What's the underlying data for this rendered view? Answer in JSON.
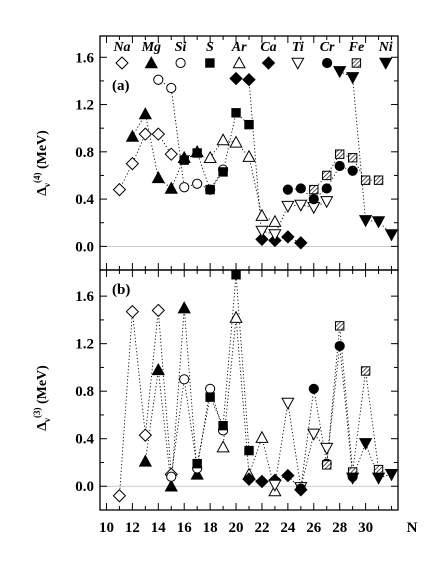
{
  "chart_data": {
    "type": "scatter",
    "x_ticks": [
      10,
      12,
      14,
      16,
      18,
      20,
      22,
      24,
      26,
      28,
      30
    ],
    "x_axis_letter": "N",
    "xlim": [
      9.5,
      32.5
    ],
    "legend": [
      {
        "name": "Na",
        "marker": "diamond-open"
      },
      {
        "name": "Mg",
        "marker": "triangle-filled"
      },
      {
        "name": "Si",
        "marker": "circle-open"
      },
      {
        "name": "S",
        "marker": "square-filled"
      },
      {
        "name": "Ar",
        "marker": "triangle-open"
      },
      {
        "name": "Ca",
        "marker": "diamond-filled"
      },
      {
        "name": "Ti",
        "marker": "triangle-down-open"
      },
      {
        "name": "Cr",
        "marker": "circle-filled"
      },
      {
        "name": "Fe",
        "marker": "square-hatched"
      },
      {
        "name": "Ni",
        "marker": "triangle-down-filled"
      }
    ],
    "panels": [
      {
        "tag": "(a)",
        "ylabel_main": "Δ",
        "ylabel_sub": "ν",
        "ylabel_sup": "(4)",
        "ylabel_unit": " (MeV)",
        "yticks": [
          "0.0",
          "0.4",
          "0.8",
          "1.2",
          "1.6"
        ],
        "ytick_values": [
          0.0,
          0.4,
          0.8,
          1.2,
          1.6
        ],
        "ylim": [
          -0.2,
          1.78
        ],
        "series": [
          {
            "name": "Na",
            "points": [
              [
                11,
                0.48
              ],
              [
                12,
                0.7
              ],
              [
                13,
                0.95
              ],
              [
                14,
                0.95
              ],
              [
                15,
                0.78
              ]
            ]
          },
          {
            "name": "Mg",
            "points": [
              [
                12,
                0.93
              ],
              [
                13,
                1.12
              ],
              [
                14,
                0.58
              ],
              [
                15,
                0.49
              ],
              [
                16,
                0.75
              ],
              [
                17,
                0.8
              ]
            ]
          },
          {
            "name": "Si",
            "points": [
              [
                14,
                1.41
              ],
              [
                15,
                1.34
              ],
              [
                16,
                0.5
              ],
              [
                17,
                0.53
              ],
              [
                18,
                0.48
              ],
              [
                19,
                0.65
              ]
            ]
          },
          {
            "name": "S",
            "points": [
              [
                16,
                0.73
              ],
              [
                17,
                0.79
              ],
              [
                18,
                0.48
              ],
              [
                19,
                0.63
              ],
              [
                20,
                1.13
              ],
              [
                21,
                1.03
              ]
            ]
          },
          {
            "name": "Ar",
            "points": [
              [
                18,
                0.75
              ],
              [
                19,
                0.9
              ],
              [
                20,
                0.88
              ],
              [
                21,
                0.76
              ],
              [
                22,
                0.26
              ],
              [
                23,
                0.21
              ]
            ]
          },
          {
            "name": "Ca",
            "points": [
              [
                20,
                1.42
              ],
              [
                21,
                1.41
              ],
              [
                22,
                0.06
              ],
              [
                23,
                0.05
              ],
              [
                24,
                0.08
              ],
              [
                25,
                0.03
              ]
            ]
          },
          {
            "name": "Ti",
            "points": [
              [
                22,
                0.13
              ],
              [
                23,
                0.1
              ],
              [
                24,
                0.34
              ],
              [
                25,
                0.35
              ],
              [
                26,
                0.33
              ],
              [
                27,
                0.38
              ]
            ]
          },
          {
            "name": "Cr",
            "points": [
              [
                24,
                0.48
              ],
              [
                25,
                0.49
              ],
              [
                26,
                0.4
              ],
              [
                27,
                0.49
              ],
              [
                28,
                0.68
              ],
              [
                29,
                0.64
              ]
            ]
          },
          {
            "name": "Fe",
            "points": [
              [
                26,
                0.48
              ],
              [
                27,
                0.6
              ],
              [
                28,
                0.78
              ],
              [
                29,
                0.75
              ],
              [
                30,
                0.56
              ],
              [
                31,
                0.56
              ]
            ]
          },
          {
            "name": "Ni",
            "points": [
              [
                28,
                1.48
              ],
              [
                29,
                1.43
              ],
              [
                30,
                0.22
              ],
              [
                31,
                0.21
              ],
              [
                32,
                0.1
              ]
            ]
          }
        ]
      },
      {
        "tag": "(b)",
        "ylabel_main": "Δ",
        "ylabel_sub": "ν",
        "ylabel_sup": "(3)",
        "ylabel_unit": " (MeV)",
        "yticks": [
          "0.0",
          "0.4",
          "0.8",
          "1.2",
          "1.6"
        ],
        "ytick_values": [
          0.0,
          0.4,
          0.8,
          1.2,
          1.6
        ],
        "ylim": [
          -0.2,
          1.82
        ],
        "series": [
          {
            "name": "Na",
            "points": [
              [
                11,
                -0.08
              ],
              [
                12,
                1.47
              ],
              [
                13,
                0.43
              ],
              [
                14,
                1.48
              ],
              [
                15,
                0.1
              ]
            ]
          },
          {
            "name": "Mg",
            "points": [
              [
                13,
                0.21
              ],
              [
                14,
                0.98
              ],
              [
                15,
                0.0
              ],
              [
                16,
                1.5
              ],
              [
                17,
                0.1
              ]
            ]
          },
          {
            "name": "Si",
            "points": [
              [
                15,
                0.08
              ],
              [
                16,
                0.9
              ],
              [
                17,
                0.15
              ],
              [
                18,
                0.82
              ],
              [
                19,
                0.47
              ]
            ]
          },
          {
            "name": "S",
            "points": [
              [
                17,
                0.19
              ],
              [
                18,
                0.75
              ],
              [
                19,
                0.51
              ],
              [
                20,
                1.78
              ],
              [
                21,
                0.3
              ]
            ]
          },
          {
            "name": "Ar",
            "points": [
              [
                19,
                0.33
              ],
              [
                20,
                1.42
              ],
              [
                21,
                0.1
              ],
              [
                22,
                0.41
              ],
              [
                23,
                -0.04
              ]
            ]
          },
          {
            "name": "Ca",
            "points": [
              [
                21,
                0.06
              ],
              [
                22,
                0.04
              ],
              [
                23,
                0.05
              ],
              [
                24,
                0.09
              ],
              [
                25,
                -0.03
              ]
            ]
          },
          {
            "name": "Ti",
            "points": [
              [
                23,
                0.01
              ],
              [
                24,
                0.7
              ],
              [
                25,
                -0.01
              ],
              [
                26,
                0.44
              ],
              [
                27,
                0.32
              ]
            ]
          },
          {
            "name": "Cr",
            "points": [
              [
                25,
                -0.02
              ],
              [
                26,
                0.82
              ],
              [
                27,
                0.19
              ],
              [
                28,
                1.18
              ],
              [
                29,
                0.08
              ]
            ]
          },
          {
            "name": "Fe",
            "points": [
              [
                27,
                0.18
              ],
              [
                28,
                1.35
              ],
              [
                29,
                0.12
              ],
              [
                30,
                0.97
              ],
              [
                31,
                0.14
              ]
            ]
          },
          {
            "name": "Ni",
            "points": [
              [
                29,
                0.07
              ],
              [
                30,
                0.36
              ],
              [
                31,
                0.07
              ],
              [
                32,
                0.1
              ]
            ]
          }
        ]
      }
    ]
  }
}
